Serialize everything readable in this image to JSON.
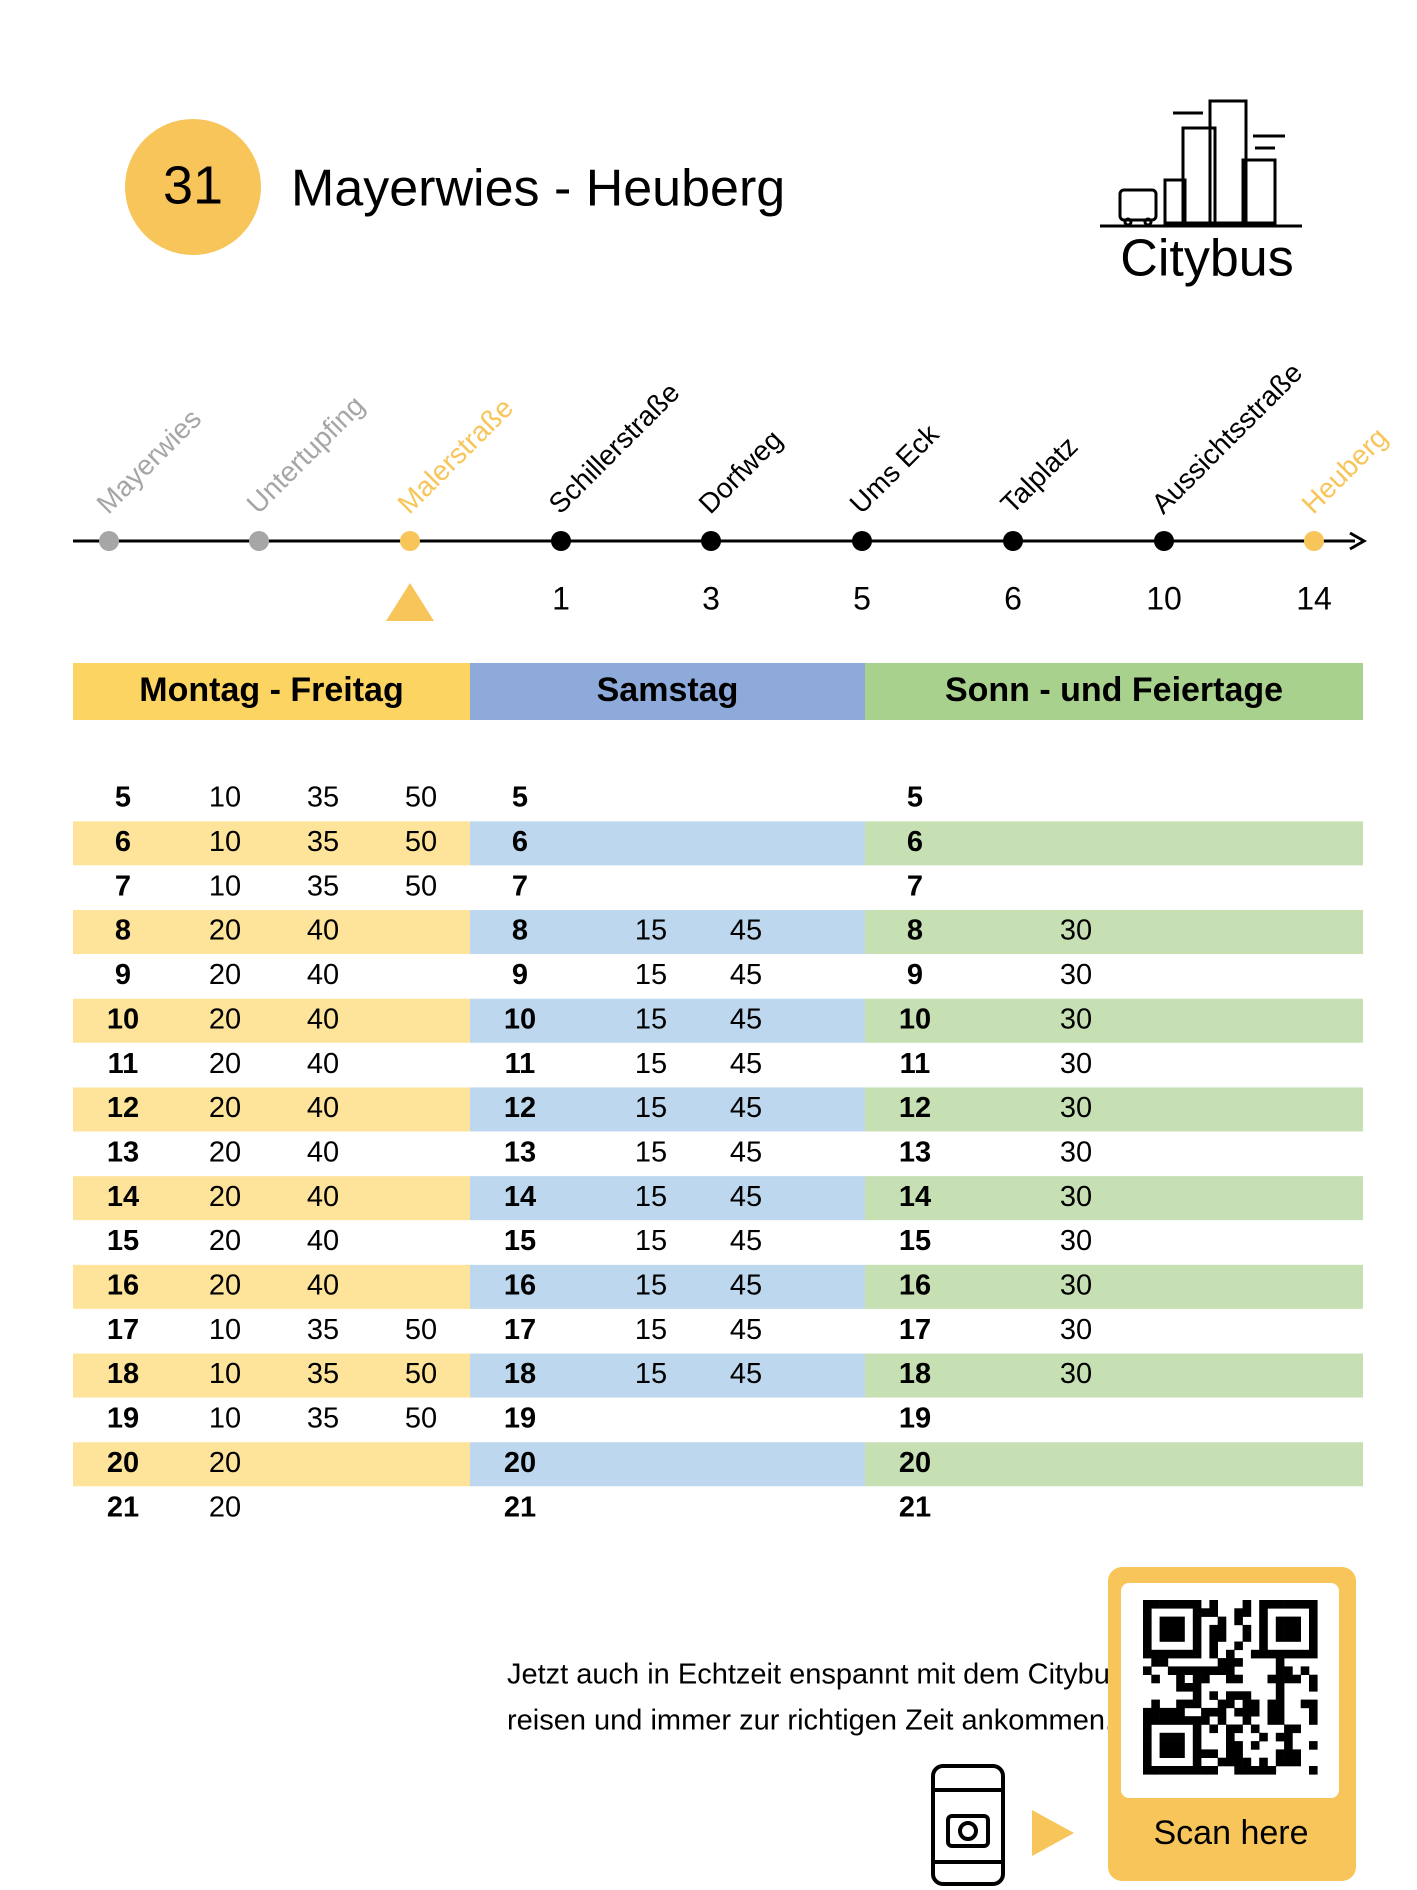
{
  "header": {
    "route_number": "31",
    "title": "Mayerwies - Heuberg",
    "brand": "Citybus"
  },
  "stops": [
    {
      "name": "Mayerwies",
      "color": "#a6a6a6"
    },
    {
      "name": "Untertupfing",
      "color": "#a6a6a6"
    },
    {
      "name": "Malerstraße",
      "color": "#f7c55a"
    },
    {
      "name": "Schillerstraße",
      "minutes": 1,
      "color": "#000000"
    },
    {
      "name": "Dorfweg",
      "minutes": 3,
      "color": "#000000"
    },
    {
      "name": "Ums Eck",
      "minutes": 5,
      "color": "#000000"
    },
    {
      "name": "Talplatz",
      "minutes": 6,
      "color": "#000000"
    },
    {
      "name": "Aussichtsstraße",
      "minutes": 10,
      "color": "#000000"
    },
    {
      "name": "Heuberg",
      "minutes": 14,
      "color": "#f7c55a"
    }
  ],
  "timetable": {
    "columns": [
      {
        "heading": "Montag - Freitag",
        "color": "#fcd462",
        "stripe": "#fde49a",
        "rows": [
          {
            "hour": 5,
            "minutes": [
              10,
              35,
              50
            ]
          },
          {
            "hour": 6,
            "minutes": [
              10,
              35,
              50
            ]
          },
          {
            "hour": 7,
            "minutes": [
              10,
              35,
              50
            ]
          },
          {
            "hour": 8,
            "minutes": [
              20,
              40
            ]
          },
          {
            "hour": 9,
            "minutes": [
              20,
              40
            ]
          },
          {
            "hour": 10,
            "minutes": [
              20,
              40
            ]
          },
          {
            "hour": 11,
            "minutes": [
              20,
              40
            ]
          },
          {
            "hour": 12,
            "minutes": [
              20,
              40
            ]
          },
          {
            "hour": 13,
            "minutes": [
              20,
              40
            ]
          },
          {
            "hour": 14,
            "minutes": [
              20,
              40
            ]
          },
          {
            "hour": 15,
            "minutes": [
              20,
              40
            ]
          },
          {
            "hour": 16,
            "minutes": [
              20,
              40
            ]
          },
          {
            "hour": 17,
            "minutes": [
              10,
              35,
              50
            ]
          },
          {
            "hour": 18,
            "minutes": [
              10,
              35,
              50
            ]
          },
          {
            "hour": 19,
            "minutes": [
              10,
              35,
              50
            ]
          },
          {
            "hour": 20,
            "minutes": [
              20
            ]
          },
          {
            "hour": 21,
            "minutes": [
              20
            ]
          }
        ]
      },
      {
        "heading": "Samstag",
        "color": "#8eaadb",
        "stripe": "#bdd7ee",
        "rows": [
          {
            "hour": 5,
            "minutes": []
          },
          {
            "hour": 6,
            "minutes": []
          },
          {
            "hour": 7,
            "minutes": []
          },
          {
            "hour": 8,
            "minutes": [
              15,
              45
            ]
          },
          {
            "hour": 9,
            "minutes": [
              15,
              45
            ]
          },
          {
            "hour": 10,
            "minutes": [
              15,
              45
            ]
          },
          {
            "hour": 11,
            "minutes": [
              15,
              45
            ]
          },
          {
            "hour": 12,
            "minutes": [
              15,
              45
            ]
          },
          {
            "hour": 13,
            "minutes": [
              15,
              45
            ]
          },
          {
            "hour": 14,
            "minutes": [
              15,
              45
            ]
          },
          {
            "hour": 15,
            "minutes": [
              15,
              45
            ]
          },
          {
            "hour": 16,
            "minutes": [
              15,
              45
            ]
          },
          {
            "hour": 17,
            "minutes": [
              15,
              45
            ]
          },
          {
            "hour": 18,
            "minutes": [
              15,
              45
            ]
          },
          {
            "hour": 19,
            "minutes": []
          },
          {
            "hour": 20,
            "minutes": []
          },
          {
            "hour": 21,
            "minutes": []
          }
        ]
      },
      {
        "heading": "Sonn - und Feiertage",
        "color": "#a9d18e",
        "stripe": "#c6e0b4",
        "rows": [
          {
            "hour": 5,
            "minutes": []
          },
          {
            "hour": 6,
            "minutes": []
          },
          {
            "hour": 7,
            "minutes": []
          },
          {
            "hour": 8,
            "minutes": [
              30
            ]
          },
          {
            "hour": 9,
            "minutes": [
              30
            ]
          },
          {
            "hour": 10,
            "minutes": [
              30
            ]
          },
          {
            "hour": 11,
            "minutes": [
              30
            ]
          },
          {
            "hour": 12,
            "minutes": [
              30
            ]
          },
          {
            "hour": 13,
            "minutes": [
              30
            ]
          },
          {
            "hour": 14,
            "minutes": [
              30
            ]
          },
          {
            "hour": 15,
            "minutes": [
              30
            ]
          },
          {
            "hour": 16,
            "minutes": [
              30
            ]
          },
          {
            "hour": 17,
            "minutes": [
              30
            ]
          },
          {
            "hour": 18,
            "minutes": [
              30
            ]
          },
          {
            "hour": 19,
            "minutes": []
          },
          {
            "hour": 20,
            "minutes": []
          },
          {
            "hour": 21,
            "minutes": []
          }
        ]
      }
    ]
  },
  "footer": {
    "lines": [
      "Jetzt auch in Echtzeit enspannt mit dem Citybus",
      "reisen und immer zur richtigen Zeit ankommen."
    ],
    "qr_label": "Scan here"
  }
}
